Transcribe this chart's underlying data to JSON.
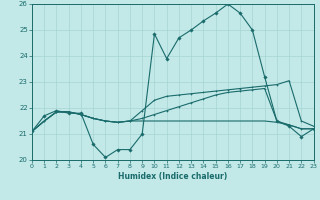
{
  "xlabel": "Humidex (Indice chaleur)",
  "bg_color": "#c2e8e8",
  "line_color": "#1a6b6b",
  "grid_color": "#a8d4d4",
  "ylim": [
    20,
    26
  ],
  "xlim": [
    0,
    23
  ],
  "yticks": [
    20,
    21,
    22,
    23,
    24,
    25,
    26
  ],
  "xticks": [
    0,
    1,
    2,
    3,
    4,
    5,
    6,
    7,
    8,
    9,
    10,
    11,
    12,
    13,
    14,
    15,
    16,
    17,
    18,
    19,
    20,
    21,
    22,
    23
  ],
  "x": [
    0,
    1,
    2,
    3,
    4,
    5,
    6,
    7,
    8,
    9,
    10,
    11,
    12,
    13,
    14,
    15,
    16,
    17,
    18,
    19,
    20,
    21,
    22,
    23
  ],
  "line1": [
    21.1,
    21.7,
    21.9,
    21.8,
    21.8,
    20.6,
    20.1,
    20.4,
    20.4,
    21.0,
    24.85,
    23.9,
    24.7,
    25.0,
    25.35,
    25.65,
    26.0,
    25.65,
    25.0,
    23.2,
    21.5,
    21.3,
    20.9,
    21.2
  ],
  "line2": [
    21.1,
    21.5,
    21.85,
    21.85,
    21.75,
    21.6,
    21.5,
    21.45,
    21.5,
    21.9,
    22.3,
    22.45,
    22.5,
    22.55,
    22.6,
    22.65,
    22.7,
    22.75,
    22.8,
    22.85,
    22.9,
    23.05,
    21.5,
    21.3
  ],
  "line3": [
    21.1,
    21.5,
    21.85,
    21.85,
    21.75,
    21.6,
    21.5,
    21.45,
    21.5,
    21.5,
    21.5,
    21.5,
    21.5,
    21.5,
    21.5,
    21.5,
    21.5,
    21.5,
    21.5,
    21.5,
    21.45,
    21.35,
    21.2,
    21.2
  ],
  "line4": [
    21.1,
    21.5,
    21.85,
    21.85,
    21.75,
    21.6,
    21.5,
    21.45,
    21.5,
    21.6,
    21.75,
    21.9,
    22.05,
    22.2,
    22.35,
    22.5,
    22.6,
    22.65,
    22.7,
    22.75,
    21.5,
    21.35,
    21.2,
    21.2
  ]
}
